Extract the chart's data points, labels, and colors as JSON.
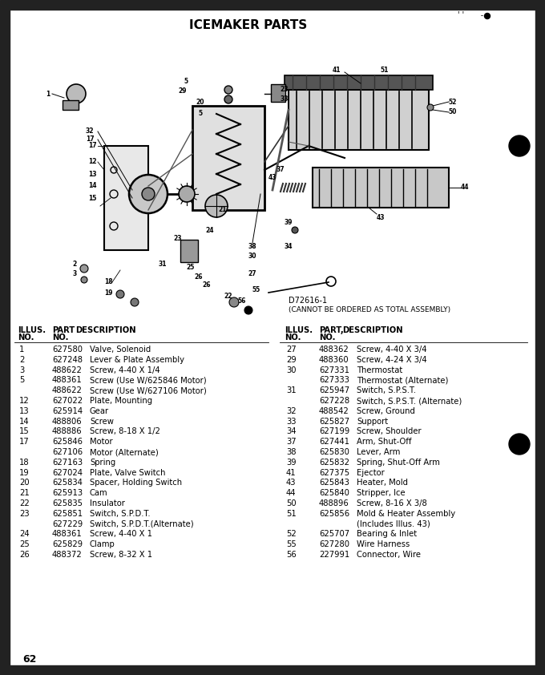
{
  "title": "ICEMAKER PARTS",
  "diagram_label_line1": "D72616-1",
  "diagram_label_line2": "(CANNOT BE ORDERED AS TOTAL ASSEMBLY)",
  "page_number": "62",
  "bg": "#ffffff",
  "border_dark": "#111111",
  "title_fontsize": 11,
  "table_font": 7.2,
  "left_rows": [
    [
      "1",
      "627580",
      "Valve, Solenoid"
    ],
    [
      "2",
      "627248",
      "Lever & Plate Assembly"
    ],
    [
      "3",
      "488622",
      "Screw, 4-40 X 1/4"
    ],
    [
      "5",
      "488361",
      "Screw (Use W/625846 Motor)"
    ],
    [
      "",
      "488622",
      "Screw (Use W/627106 Motor)"
    ],
    [
      "12",
      "627022",
      "Plate, Mounting"
    ],
    [
      "13",
      "625914",
      "Gear"
    ],
    [
      "14",
      "488806",
      "Screw"
    ],
    [
      "15",
      "488886",
      "Screw, 8-18 X 1/2"
    ],
    [
      "17",
      "625846",
      "Motor"
    ],
    [
      "",
      "627106",
      "Motor (Alternate)"
    ],
    [
      "18",
      "627163",
      "Spring"
    ],
    [
      "19",
      "627024",
      "Plate, Valve Switch"
    ],
    [
      "20",
      "625834",
      "Spacer, Holding Switch"
    ],
    [
      "21",
      "625913",
      "Cam"
    ],
    [
      "22",
      "625835",
      "Insulator"
    ],
    [
      "23",
      "625851",
      "Switch, S.P.D.T."
    ],
    [
      "",
      "627229",
      "Switch, S.P.D.T.(Alternate)"
    ],
    [
      "24",
      "488361",
      "Screw, 4-40 X 1"
    ],
    [
      "25",
      "625829",
      "Clamp"
    ],
    [
      "26",
      "488372",
      "Screw, 8-32 X 1"
    ]
  ],
  "right_rows": [
    [
      "27",
      "488362",
      "Screw, 4-40 X 3/4"
    ],
    [
      "29",
      "488360",
      "Screw, 4-24 X 3/4"
    ],
    [
      "30",
      "627331",
      "Thermostat"
    ],
    [
      "",
      "627333",
      "Thermostat (Alternate)"
    ],
    [
      "31",
      "625947",
      "Switch, S.P.S.T."
    ],
    [
      "",
      "627228",
      "Switch, S.P.S.T. (Alternate)"
    ],
    [
      "32",
      "488542",
      "Screw, Ground"
    ],
    [
      "33",
      "625827",
      "Support"
    ],
    [
      "34",
      "627199",
      "Screw, Shoulder"
    ],
    [
      "37",
      "627441",
      "Arm, Shut-Off"
    ],
    [
      "38",
      "625830",
      "Lever, Arm"
    ],
    [
      "39",
      "625832",
      "Spring, Shut-Off Arm"
    ],
    [
      "41",
      "627375",
      "Ejector"
    ],
    [
      "43",
      "625843",
      "Heater, Mold"
    ],
    [
      "44",
      "625840",
      "Stripper, Ice"
    ],
    [
      "50",
      "488896",
      "Screw, 8-16 X 3/8"
    ],
    [
      "51",
      "625856",
      "Mold & Heater Assembly"
    ],
    [
      "",
      "",
      "(Includes Illus. 43)"
    ],
    [
      "52",
      "625707",
      "Bearing & Inlet"
    ],
    [
      "55",
      "627280",
      "Wire Harness"
    ],
    [
      "56",
      "227991",
      "Connector, Wire"
    ]
  ]
}
